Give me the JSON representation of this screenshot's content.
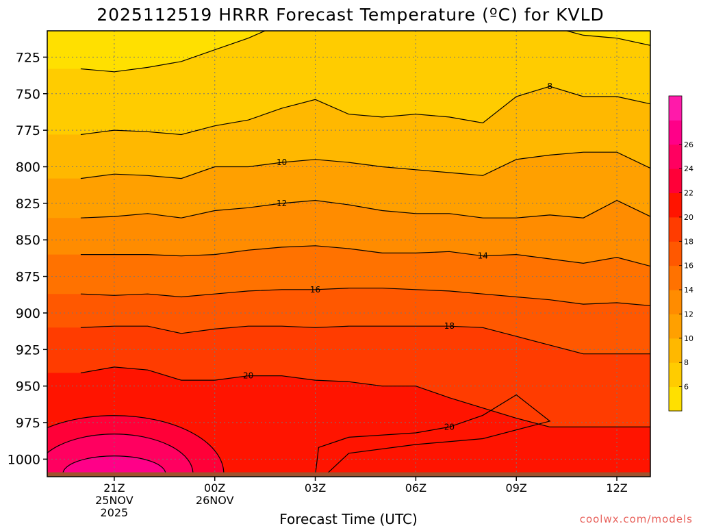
{
  "chart_data": {
    "type": "contour",
    "title": "2025112519 HRRR Forecast Temperature (ºC) for KVLD",
    "xlabel": "Forecast Time (UTC)",
    "ylabel": "",
    "credit": "coolwx.com/models",
    "x_hours": [
      -4,
      -3,
      -2,
      -1,
      0,
      1,
      2,
      3,
      4,
      5,
      6,
      7,
      8,
      9,
      10,
      11,
      12,
      13
    ],
    "xlim": [
      -5,
      13
    ],
    "x_ticks": [
      {
        "hour": -3,
        "lines": [
          "21Z",
          "25NOV",
          "2025"
        ]
      },
      {
        "hour": 0,
        "lines": [
          "00Z",
          "26NOV"
        ]
      },
      {
        "hour": 3,
        "lines": [
          "03Z"
        ]
      },
      {
        "hour": 6,
        "lines": [
          "06Z"
        ]
      },
      {
        "hour": 9,
        "lines": [
          "09Z"
        ]
      },
      {
        "hour": 12,
        "lines": [
          "12Z"
        ]
      }
    ],
    "ylim_hPa": [
      1012,
      707
    ],
    "y_ticks": [
      725,
      750,
      775,
      800,
      825,
      850,
      875,
      900,
      925,
      950,
      975,
      1000
    ],
    "colorbar": {
      "levels": [
        4,
        6,
        8,
        10,
        12,
        14,
        16,
        18,
        20,
        22,
        24,
        26,
        28
      ],
      "colors": [
        "#ffe000",
        "#ffcc00",
        "#ffb800",
        "#ffa000",
        "#ff8c00",
        "#ff7200",
        "#ff5800",
        "#ff3c00",
        "#ff1400",
        "#ff0038",
        "#ff0060",
        "#ff0088",
        "#ff1aaa"
      ],
      "tick_labels": [
        "6",
        "8",
        "10",
        "12",
        "14",
        "16",
        "18",
        "20",
        "22",
        "24",
        "26"
      ]
    },
    "contours": [
      {
        "level": 6,
        "labeled": false,
        "p": [
          733,
          735,
          732,
          728,
          720,
          712,
          702,
          702,
          702,
          702,
          702,
          702,
          702,
          702,
          704,
          710,
          712,
          717
        ]
      },
      {
        "level": 8,
        "labeled": true,
        "label_hour": 10,
        "p": [
          778,
          775,
          776,
          778,
          772,
          768,
          760,
          754,
          764,
          766,
          764,
          766,
          770,
          752,
          745,
          752,
          752,
          757
        ]
      },
      {
        "level": 10,
        "labeled": true,
        "label_hour": 2,
        "p": [
          808,
          805,
          806,
          808,
          800,
          800,
          797,
          795,
          797,
          800,
          802,
          804,
          806,
          795,
          792,
          790,
          790,
          801
        ]
      },
      {
        "level": 12,
        "labeled": true,
        "label_hour": 2,
        "p": [
          835,
          834,
          832,
          835,
          830,
          828,
          825,
          823,
          826,
          830,
          832,
          832,
          835,
          835,
          833,
          835,
          823,
          834
        ]
      },
      {
        "level": 14,
        "labeled": true,
        "label_hour": 8,
        "p": [
          860,
          860,
          860,
          861,
          860,
          857,
          855,
          854,
          856,
          859,
          859,
          858,
          861,
          860,
          863,
          866,
          862,
          868
        ]
      },
      {
        "level": 16,
        "labeled": true,
        "label_hour": 3,
        "p": [
          887,
          888,
          887,
          889,
          887,
          885,
          884,
          884,
          883,
          883,
          884,
          885,
          887,
          889,
          891,
          894,
          893,
          895
        ]
      },
      {
        "level": 18,
        "labeled": true,
        "label_hour": 7,
        "p": [
          910,
          909,
          909,
          914,
          911,
          909,
          909,
          910,
          909,
          909,
          909,
          909,
          910,
          916,
          922,
          928,
          928,
          928
        ]
      },
      {
        "level": 20,
        "labeled": true,
        "label_hour": 1,
        "p": [
          941,
          937,
          939,
          946,
          946,
          943,
          943,
          946,
          947,
          950,
          950,
          958,
          965,
          972,
          978,
          978,
          978,
          978
        ]
      }
    ],
    "warm_pool": {
      "level": 20,
      "label": "20"
    }
  }
}
